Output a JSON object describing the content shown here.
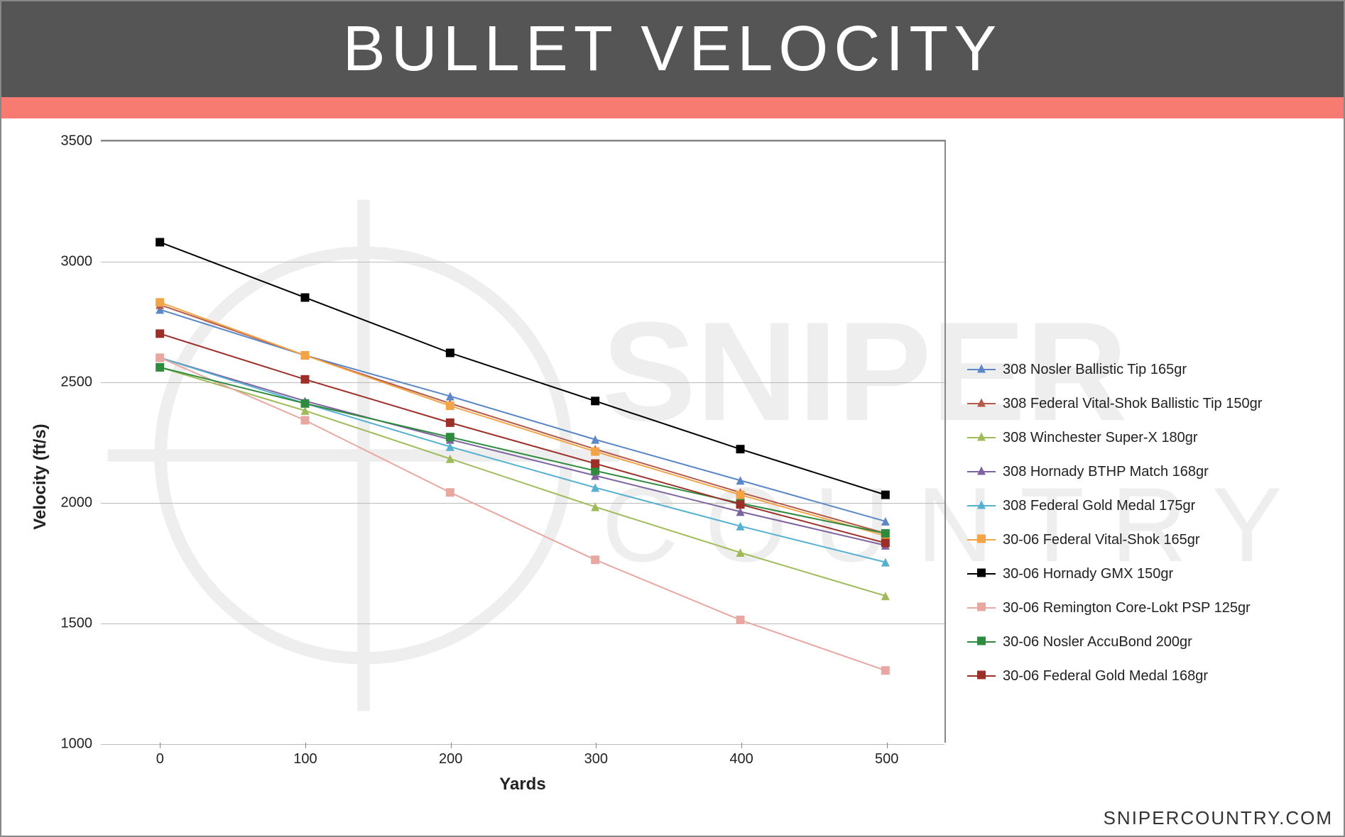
{
  "title": "BULLET VELOCITY",
  "header_bg": "#555555",
  "accent_color": "#f87b71",
  "footer": "SNIPERCOUNTRY.COM",
  "chart": {
    "type": "line",
    "xlabel": "Yards",
    "ylabel": "Velocity (ft/s)",
    "x_categories": [
      "0",
      "100",
      "200",
      "300",
      "400",
      "500"
    ],
    "ylim": [
      1000,
      3500
    ],
    "ytick_step": 500,
    "y_ticks": [
      "1000",
      "1500",
      "2000",
      "2500",
      "3000",
      "3500"
    ],
    "grid_color": "#bbbbbb",
    "border_color": "#888888",
    "label_fontsize": 20,
    "axis_title_fontsize": 24,
    "line_width": 2,
    "marker_size": 12,
    "series": [
      {
        "name": "308 Nosler Ballistic Tip 165gr",
        "color": "#5b87c6",
        "marker": "triangle",
        "values": [
          2800,
          2610,
          2440,
          2260,
          2090,
          1920
        ]
      },
      {
        "name": "308 Federal Vital-Shok Ballistic Tip 150gr",
        "color": "#b55a4a",
        "marker": "triangle",
        "values": [
          2820,
          2610,
          2410,
          2220,
          2040,
          1870
        ]
      },
      {
        "name": "308 Winchester Super-X 180gr",
        "color": "#9fbb59",
        "marker": "triangle",
        "values": [
          2560,
          2380,
          2180,
          1980,
          1790,
          1610
        ]
      },
      {
        "name": "308 Hornady BTHP Match 168gr",
        "color": "#7e63a1",
        "marker": "triangle",
        "values": [
          2600,
          2420,
          2260,
          2110,
          1960,
          1820
        ]
      },
      {
        "name": "308 Federal Gold Medal 175gr",
        "color": "#56b0d0",
        "marker": "triangle",
        "values": [
          2600,
          2410,
          2230,
          2060,
          1900,
          1750
        ]
      },
      {
        "name": "30-06 Federal Vital-Shok 165gr",
        "color": "#f3a447",
        "marker": "square",
        "values": [
          2830,
          2610,
          2400,
          2210,
          2030,
          1860
        ]
      },
      {
        "name": "30-06 Hornady GMX 150gr",
        "color": "#000000",
        "marker": "square",
        "values": [
          3080,
          2850,
          2620,
          2420,
          2220,
          2030
        ]
      },
      {
        "name": "30-06 Remington Core-Lokt PSP 125gr",
        "color": "#e8a7a0",
        "marker": "square",
        "values": [
          2600,
          2340,
          2040,
          1760,
          1510,
          1300
        ]
      },
      {
        "name": "30-06 Nosler AccuBond 200gr",
        "color": "#2e8b3e",
        "marker": "square",
        "values": [
          2560,
          2410,
          2270,
          2130,
          1995,
          1870
        ]
      },
      {
        "name": "30-06 Federal Gold Medal 168gr",
        "color": "#9c2f28",
        "marker": "square",
        "values": [
          2700,
          2510,
          2330,
          2160,
          1990,
          1830
        ]
      }
    ]
  }
}
